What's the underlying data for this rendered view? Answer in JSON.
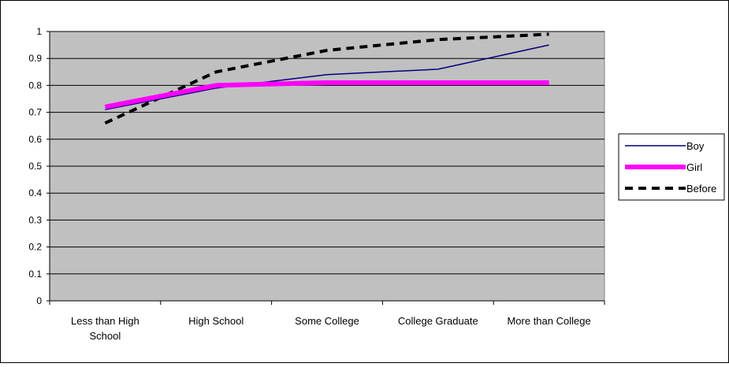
{
  "chart_data": {
    "type": "line",
    "title": "",
    "xlabel": "",
    "ylabel": "",
    "categories": [
      [
        "Less than High",
        "School"
      ],
      [
        "High School"
      ],
      [
        "Some College"
      ],
      [
        "College Graduate"
      ],
      [
        "More than College"
      ]
    ],
    "ylim": [
      0,
      1
    ],
    "yticks": [
      "0",
      "0.1",
      "0.2",
      "0.3",
      "0.4",
      "0.5",
      "0.6",
      "0.7",
      "0.8",
      "0.9",
      "1"
    ],
    "grid": true,
    "legend_position": "right",
    "plot_background": "#c0c0c0",
    "series": [
      {
        "name": "Boy",
        "values": [
          0.71,
          0.79,
          0.84,
          0.86,
          0.95
        ],
        "color": "#000080",
        "style": "solid-thin"
      },
      {
        "name": "Girl",
        "values": [
          0.72,
          0.8,
          0.81,
          0.81,
          0.81
        ],
        "color": "#ff00ff",
        "style": "solid-thick"
      },
      {
        "name": "Before",
        "values": [
          0.66,
          0.85,
          0.93,
          0.97,
          0.99
        ],
        "color": "#000000",
        "style": "dashed-thick"
      }
    ]
  }
}
